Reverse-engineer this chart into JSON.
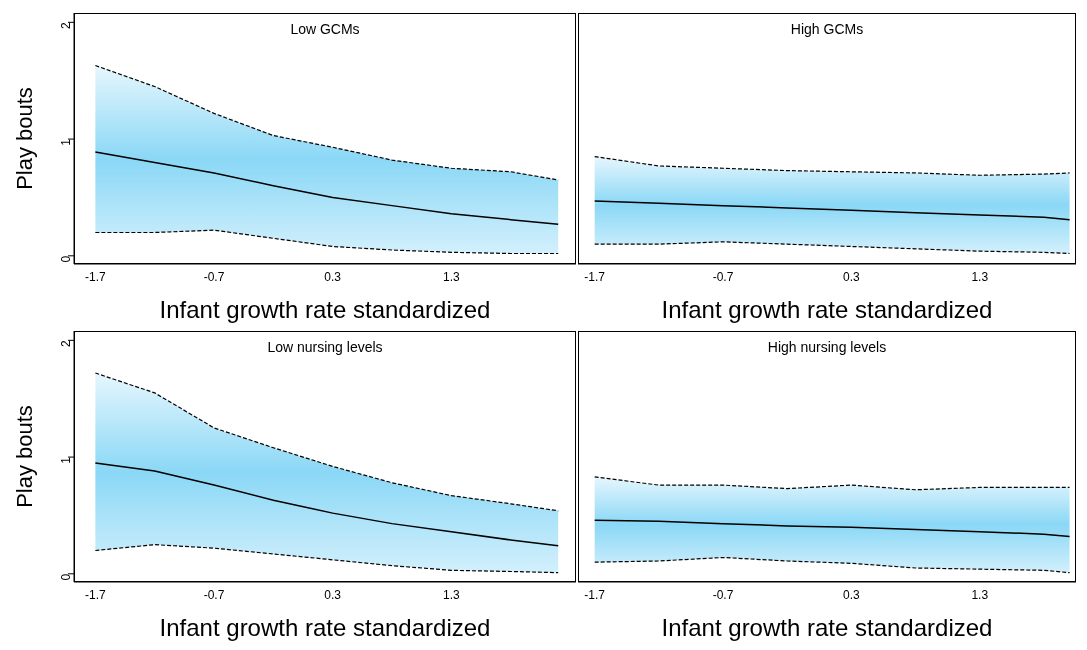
{
  "chart_data": [
    {
      "type": "line",
      "title": "Low GCMs",
      "xlabel": "Infant growth rate standardized",
      "ylabel": "Play bouts",
      "x": [
        -1.7,
        -1.2,
        -0.7,
        -0.2,
        0.3,
        0.8,
        1.3,
        1.8,
        2.2
      ],
      "xlim": [
        -1.88,
        2.35
      ],
      "xticks": [
        -1.7,
        -0.7,
        0.3,
        1.3
      ],
      "ylim": [
        -0.07,
        2.08
      ],
      "yticks": [
        0,
        1,
        2
      ],
      "grid": false,
      "legend": false,
      "series": [
        {
          "color": "#000000",
          "values": [
            0.89,
            0.8,
            0.71,
            0.6,
            0.5,
            0.43,
            0.36,
            0.31,
            0.27
          ],
          "lower": [
            0.2,
            0.2,
            0.22,
            0.15,
            0.08,
            0.05,
            0.03,
            0.02,
            0.02
          ],
          "upper": [
            1.63,
            1.45,
            1.22,
            1.03,
            0.93,
            0.82,
            0.75,
            0.72,
            0.65
          ]
        },
        {
          "color": "#000000",
          "line_style": "dashed",
          "values": [
            1.63,
            1.45,
            1.22,
            1.03,
            0.93,
            0.82,
            0.75,
            0.72,
            0.65
          ]
        },
        {
          "color": "#000000",
          "line_style": "dashed",
          "values": [
            0.2,
            0.2,
            0.22,
            0.15,
            0.08,
            0.05,
            0.03,
            0.02,
            0.02
          ]
        }
      ]
    },
    {
      "type": "line",
      "title": "High GCMs",
      "xlabel": "Infant growth rate standardized",
      "x": [
        -1.7,
        -1.2,
        -0.7,
        -0.2,
        0.3,
        0.8,
        1.3,
        1.8,
        2.0
      ],
      "xlim": [
        -1.83,
        2.05
      ],
      "xticks": [
        -1.7,
        -0.7,
        0.3,
        1.3
      ],
      "ylim": [
        -0.07,
        2.08
      ],
      "yticks": [
        0,
        1,
        2
      ],
      "grid": false,
      "legend": false,
      "tick_labels": "x",
      "series": [
        {
          "color": "#000000",
          "values": [
            0.47,
            0.45,
            0.43,
            0.41,
            0.39,
            0.37,
            0.35,
            0.33,
            0.31
          ],
          "lower": [
            0.1,
            0.1,
            0.12,
            0.1,
            0.08,
            0.06,
            0.04,
            0.03,
            0.02
          ],
          "upper": [
            0.85,
            0.77,
            0.75,
            0.73,
            0.72,
            0.71,
            0.69,
            0.7,
            0.71
          ]
        },
        {
          "color": "#000000",
          "line_style": "dashed",
          "values": [
            0.85,
            0.77,
            0.75,
            0.73,
            0.72,
            0.71,
            0.69,
            0.7,
            0.71
          ]
        },
        {
          "color": "#000000",
          "line_style": "dashed",
          "values": [
            0.1,
            0.1,
            0.12,
            0.1,
            0.08,
            0.06,
            0.04,
            0.03,
            0.02
          ]
        }
      ]
    },
    {
      "type": "line",
      "title": "Low nursing levels",
      "xlabel": "Infant growth rate standardized",
      "ylabel": "Play bouts",
      "x": [
        -1.7,
        -1.2,
        -0.7,
        -0.2,
        0.3,
        0.8,
        1.3,
        1.8,
        2.2
      ],
      "xlim": [
        -1.88,
        2.35
      ],
      "xticks": [
        -1.7,
        -0.7,
        0.3,
        1.3
      ],
      "ylim": [
        -0.07,
        2.08
      ],
      "yticks": [
        0,
        1,
        2
      ],
      "grid": false,
      "legend": false,
      "series": [
        {
          "color": "#000000",
          "values": [
            0.95,
            0.88,
            0.76,
            0.63,
            0.52,
            0.43,
            0.36,
            0.29,
            0.24
          ],
          "lower": [
            0.2,
            0.25,
            0.22,
            0.17,
            0.12,
            0.07,
            0.03,
            0.02,
            0.01
          ],
          "upper": [
            1.72,
            1.55,
            1.25,
            1.08,
            0.92,
            0.78,
            0.67,
            0.6,
            0.54
          ]
        },
        {
          "color": "#000000",
          "line_style": "dashed",
          "values": [
            1.72,
            1.55,
            1.25,
            1.08,
            0.92,
            0.78,
            0.67,
            0.6,
            0.54
          ]
        },
        {
          "color": "#000000",
          "line_style": "dashed",
          "values": [
            0.2,
            0.25,
            0.22,
            0.17,
            0.12,
            0.07,
            0.03,
            0.02,
            0.01
          ]
        }
      ]
    },
    {
      "type": "line",
      "title": "High nursing levels",
      "xlabel": "Infant growth rate standardized",
      "x": [
        -1.7,
        -1.2,
        -0.7,
        -0.2,
        0.3,
        0.8,
        1.3,
        1.8,
        2.0
      ],
      "xlim": [
        -1.83,
        2.05
      ],
      "xticks": [
        -1.7,
        -0.7,
        0.3,
        1.3
      ],
      "ylim": [
        -0.07,
        2.08
      ],
      "yticks": [
        0,
        1,
        2
      ],
      "grid": false,
      "legend": false,
      "tick_labels": "x",
      "series": [
        {
          "color": "#000000",
          "values": [
            0.46,
            0.45,
            0.43,
            0.41,
            0.4,
            0.38,
            0.36,
            0.34,
            0.32
          ],
          "lower": [
            0.1,
            0.11,
            0.14,
            0.11,
            0.09,
            0.05,
            0.04,
            0.03,
            0.01
          ],
          "upper": [
            0.83,
            0.76,
            0.76,
            0.73,
            0.76,
            0.72,
            0.74,
            0.74,
            0.74
          ]
        },
        {
          "color": "#000000",
          "line_style": "dashed",
          "values": [
            0.83,
            0.76,
            0.76,
            0.73,
            0.76,
            0.72,
            0.74,
            0.74,
            0.74
          ]
        },
        {
          "color": "#000000",
          "line_style": "dashed",
          "values": [
            0.1,
            0.11,
            0.14,
            0.11,
            0.09,
            0.05,
            0.04,
            0.03,
            0.01
          ]
        }
      ]
    }
  ]
}
